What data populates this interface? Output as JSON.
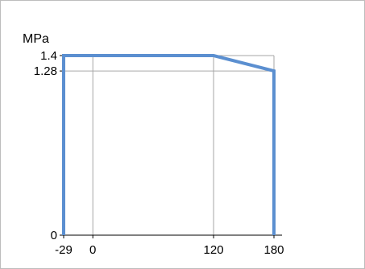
{
  "chart_data": {
    "type": "line",
    "title": "",
    "ylabel": "MPa",
    "xlabel": "",
    "grid": true,
    "legend": "none",
    "xlim": [
      -29,
      180
    ],
    "ylim": [
      0,
      1.4
    ],
    "x_ticks": [
      {
        "value": -29,
        "label": "-29"
      },
      {
        "value": 0,
        "label": "0"
      },
      {
        "value": 120,
        "label": "120"
      },
      {
        "value": 180,
        "label": "180"
      }
    ],
    "y_ticks": [
      {
        "value": 0,
        "label": "0"
      },
      {
        "value": 1.28,
        "label": "1.28"
      },
      {
        "value": 1.4,
        "label": "1.4"
      }
    ],
    "series": [
      {
        "color": "#5b8fd0",
        "points": [
          {
            "x": -29,
            "y": 0
          },
          {
            "x": -29,
            "y": 1.4
          },
          {
            "x": 120,
            "y": 1.4
          },
          {
            "x": 180,
            "y": 1.28
          },
          {
            "x": 180,
            "y": 0
          }
        ]
      }
    ]
  }
}
